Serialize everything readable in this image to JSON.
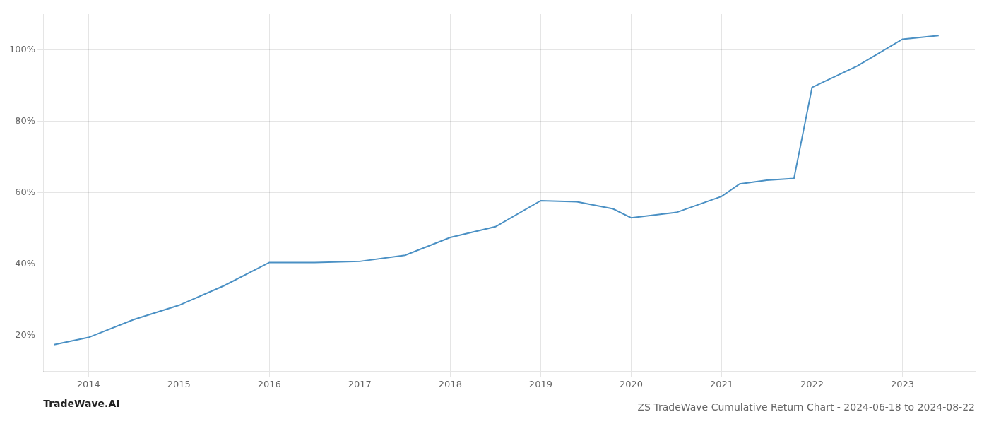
{
  "chart_data": {
    "type": "line",
    "title": "ZS TradeWave Cumulative Return Chart - 2024-06-18 to 2024-08-22",
    "annotations": [
      "TradeWave.AI"
    ],
    "x": [
      2013.62,
      2014.0,
      2014.5,
      2015.0,
      2015.5,
      2016.0,
      2016.5,
      2017.0,
      2017.5,
      2018.0,
      2018.5,
      2019.0,
      2019.4,
      2019.8,
      2020.0,
      2020.5,
      2021.0,
      2021.2,
      2021.5,
      2021.8,
      2022.0,
      2022.5,
      2023.0,
      2023.4
    ],
    "values": [
      0.175,
      0.195,
      0.245,
      0.285,
      0.34,
      0.405,
      0.405,
      0.408,
      0.425,
      0.475,
      0.505,
      0.578,
      0.575,
      0.555,
      0.53,
      0.545,
      0.59,
      0.625,
      0.635,
      0.64,
      0.895,
      0.955,
      1.03,
      1.04
    ],
    "color": "#4a90c4",
    "xlim": [
      2013.5,
      2023.8
    ],
    "xticks": [
      2014,
      2015,
      2016,
      2017,
      2018,
      2019,
      2020,
      2021,
      2022,
      2023
    ],
    "ylim": [
      0.1,
      1.1
    ],
    "yticks": [
      {
        "value": 0.2,
        "label": "20%"
      },
      {
        "value": 0.4,
        "label": "40%"
      },
      {
        "value": 0.6,
        "label": "60%"
      },
      {
        "value": 0.8,
        "label": "80%"
      },
      {
        "value": 1.0,
        "label": "100%"
      }
    ],
    "grid": true
  }
}
